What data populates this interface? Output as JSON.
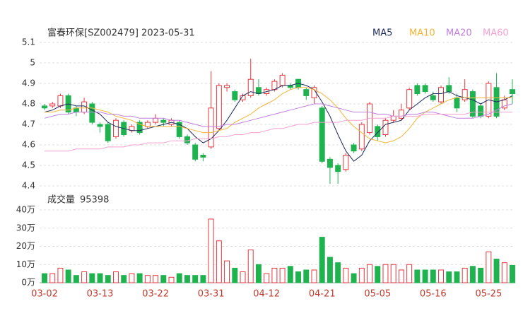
{
  "chart_data": {
    "type": "candlestick",
    "title": "富春环保[SZ002479] 2023-05-31",
    "volume_title": "成交量",
    "volume_current": "95398",
    "categories": [
      "03-02",
      null,
      null,
      null,
      null,
      null,
      null,
      "03-13",
      null,
      null,
      null,
      null,
      null,
      null,
      "03-22",
      null,
      null,
      null,
      null,
      null,
      null,
      "03-31",
      null,
      null,
      null,
      null,
      null,
      null,
      "04-12",
      null,
      null,
      null,
      null,
      null,
      null,
      "04-21",
      null,
      null,
      null,
      null,
      null,
      null,
      "05-05",
      null,
      null,
      null,
      null,
      null,
      null,
      "05-16",
      null,
      null,
      null,
      null,
      null,
      null,
      "05-25",
      null,
      null,
      null
    ],
    "open": [
      4.79,
      4.79,
      4.79,
      4.84,
      4.78,
      4.76,
      4.8,
      4.7,
      4.7,
      4.64,
      4.71,
      4.67,
      4.71,
      4.69,
      4.71,
      4.72,
      4.7,
      4.71,
      4.64,
      4.6,
      4.55,
      4.59,
      4.68,
      4.88,
      4.86,
      4.82,
      4.84,
      4.88,
      4.85,
      4.87,
      4.89,
      4.89,
      4.92,
      4.87,
      4.83,
      4.78,
      4.53,
      4.5,
      4.48,
      4.6,
      4.58,
      4.66,
      4.69,
      4.65,
      4.72,
      4.73,
      4.78,
      4.89,
      4.89,
      4.84,
      4.81,
      4.89,
      4.83,
      4.82,
      4.86,
      4.79,
      4.74,
      4.88,
      4.78,
      4.87
    ],
    "close": [
      4.78,
      4.8,
      4.84,
      4.76,
      4.76,
      4.81,
      4.71,
      4.69,
      4.62,
      4.72,
      4.65,
      4.69,
      4.66,
      4.71,
      4.73,
      4.71,
      4.72,
      4.64,
      4.61,
      4.53,
      4.54,
      4.78,
      4.89,
      4.89,
      4.82,
      4.84,
      4.92,
      4.85,
      4.87,
      4.91,
      4.94,
      4.88,
      4.88,
      4.84,
      4.88,
      4.52,
      4.49,
      4.47,
      4.55,
      4.57,
      4.7,
      4.8,
      4.64,
      4.72,
      4.74,
      4.77,
      4.87,
      4.85,
      4.86,
      4.82,
      4.88,
      4.86,
      4.78,
      4.87,
      4.74,
      4.74,
      4.9,
      4.74,
      4.82,
      4.85
    ],
    "low": [
      4.77,
      4.78,
      4.78,
      4.75,
      4.74,
      4.75,
      4.7,
      4.66,
      4.61,
      4.63,
      4.64,
      4.66,
      4.65,
      4.68,
      4.7,
      4.69,
      4.69,
      4.63,
      4.6,
      4.52,
      4.52,
      4.58,
      4.67,
      4.86,
      4.81,
      4.81,
      4.83,
      4.84,
      4.84,
      4.86,
      4.88,
      4.87,
      4.87,
      4.82,
      4.8,
      4.51,
      4.41,
      4.41,
      4.47,
      4.56,
      4.57,
      4.65,
      4.62,
      4.64,
      4.71,
      4.72,
      4.77,
      4.84,
      4.85,
      4.81,
      4.8,
      4.85,
      4.76,
      4.81,
      4.73,
      4.73,
      4.73,
      4.73,
      4.77,
      4.8
    ],
    "high": [
      4.8,
      4.81,
      4.85,
      4.85,
      4.79,
      4.83,
      4.81,
      4.71,
      4.71,
      4.73,
      4.72,
      4.7,
      4.72,
      4.72,
      4.75,
      4.73,
      4.73,
      4.72,
      4.65,
      4.61,
      4.56,
      4.96,
      4.9,
      4.9,
      4.87,
      4.85,
      5.02,
      4.92,
      4.88,
      4.92,
      4.95,
      4.9,
      4.92,
      4.88,
      4.89,
      4.79,
      4.54,
      4.51,
      4.56,
      4.61,
      4.71,
      4.81,
      4.7,
      4.73,
      4.77,
      4.8,
      4.88,
      4.9,
      4.9,
      4.86,
      4.89,
      4.93,
      4.85,
      4.92,
      4.87,
      4.8,
      4.91,
      4.95,
      4.84,
      4.92
    ],
    "volume": [
      5,
      5,
      8,
      7,
      4,
      6,
      5,
      5,
      4,
      6,
      4,
      5,
      5,
      4,
      4,
      4,
      3,
      5,
      4,
      4,
      4,
      35,
      23,
      12,
      8,
      6,
      18,
      10,
      5,
      8,
      8,
      9,
      6,
      7,
      7,
      25,
      14,
      11,
      8,
      5,
      8,
      10,
      9,
      10,
      10,
      7,
      10,
      7,
      7,
      7,
      7,
      6,
      6,
      8,
      9,
      8,
      17,
      13,
      11,
      9.5398
    ],
    "up_color": "#e8363c",
    "down_color": "#1fb34f",
    "series": [
      {
        "name": "MA5",
        "color": "#1d2b5c",
        "values": [
          4.76,
          4.77,
          4.79,
          4.8,
          4.79,
          4.79,
          4.77,
          4.75,
          4.71,
          4.69,
          4.68,
          4.67,
          4.67,
          4.68,
          4.69,
          4.7,
          4.71,
          4.7,
          4.68,
          4.64,
          4.61,
          4.63,
          4.67,
          4.72,
          4.78,
          4.84,
          4.86,
          4.85,
          4.86,
          4.87,
          4.89,
          4.89,
          4.9,
          4.89,
          4.87,
          4.81,
          4.74,
          4.65,
          4.57,
          4.52,
          4.55,
          4.62,
          4.66,
          4.7,
          4.71,
          4.72,
          4.77,
          4.8,
          4.83,
          4.85,
          4.85,
          4.86,
          4.84,
          4.83,
          4.82,
          4.8,
          4.82,
          4.81,
          4.82,
          4.84
        ]
      },
      {
        "name": "MA10",
        "color": "#f5b335",
        "values": [
          4.76,
          4.76,
          4.77,
          4.77,
          4.78,
          4.78,
          4.78,
          4.77,
          4.76,
          4.74,
          4.73,
          4.72,
          4.7,
          4.69,
          4.69,
          4.69,
          4.69,
          4.69,
          4.68,
          4.67,
          4.66,
          4.66,
          4.67,
          4.68,
          4.71,
          4.73,
          4.75,
          4.78,
          4.8,
          4.82,
          4.85,
          4.87,
          4.88,
          4.88,
          4.87,
          4.85,
          4.82,
          4.78,
          4.73,
          4.69,
          4.66,
          4.63,
          4.62,
          4.61,
          4.62,
          4.64,
          4.68,
          4.73,
          4.76,
          4.78,
          4.8,
          4.82,
          4.83,
          4.83,
          4.83,
          4.83,
          4.83,
          4.83,
          4.83,
          4.83
        ]
      },
      {
        "name": "MA20",
        "color": "#c27fe0",
        "values": [
          4.73,
          4.74,
          4.75,
          4.75,
          4.76,
          4.76,
          4.76,
          4.76,
          4.75,
          4.75,
          4.74,
          4.74,
          4.73,
          4.73,
          4.73,
          4.73,
          4.72,
          4.72,
          4.71,
          4.7,
          4.69,
          4.69,
          4.69,
          4.7,
          4.7,
          4.71,
          4.72,
          4.73,
          4.74,
          4.75,
          4.76,
          4.77,
          4.78,
          4.79,
          4.8,
          4.8,
          4.79,
          4.78,
          4.77,
          4.76,
          4.76,
          4.76,
          4.75,
          4.75,
          4.74,
          4.74,
          4.75,
          4.75,
          4.76,
          4.76,
          4.75,
          4.74,
          4.73,
          4.73,
          4.73,
          4.74,
          4.75,
          4.77,
          4.79,
          4.8
        ]
      },
      {
        "name": "MA60",
        "color": "#f59fd2",
        "values": [
          4.57,
          4.57,
          4.57,
          4.57,
          4.58,
          4.58,
          4.58,
          4.58,
          4.59,
          4.59,
          4.59,
          4.6,
          4.6,
          4.61,
          4.61,
          4.61,
          4.62,
          4.62,
          4.62,
          4.63,
          4.63,
          4.63,
          4.64,
          4.64,
          4.65,
          4.65,
          4.66,
          4.66,
          4.67,
          4.68,
          4.68,
          4.69,
          4.7,
          4.7,
          4.71,
          4.71,
          4.71,
          4.71,
          4.72,
          4.72,
          4.72,
          4.73,
          4.73,
          4.73,
          4.74,
          4.74,
          4.74,
          4.74,
          4.75,
          4.75,
          4.75,
          4.75,
          4.75,
          4.75,
          4.76,
          4.76,
          4.76,
          4.76,
          4.76,
          4.76
        ]
      }
    ],
    "ylim": [
      4.4,
      5.1
    ],
    "yticks": [
      4.4,
      4.5,
      4.6,
      4.7,
      4.8,
      4.9,
      5,
      5.1
    ],
    "y2lim": [
      0,
      40
    ],
    "y2ticks": [
      {
        "value": 0,
        "label": "0万"
      },
      {
        "value": 10,
        "label": "10万"
      },
      {
        "value": 20,
        "label": "20万"
      },
      {
        "value": 30,
        "label": "30万"
      },
      {
        "value": 40,
        "label": "40万"
      }
    ],
    "grid": true
  }
}
